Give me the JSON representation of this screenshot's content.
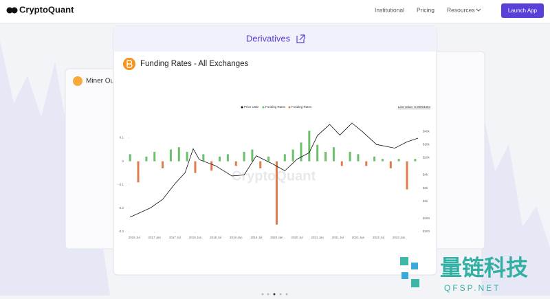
{
  "nav": {
    "logo": "CryptoQuant",
    "links": [
      "Institutional",
      "Pricing",
      "Resources"
    ],
    "button": "Launch App"
  },
  "back_card": {
    "title": "Miner Out"
  },
  "main_card": {
    "header": "Derivatives",
    "title": "Funding Rates - All Exchanges"
  },
  "chart_data": {
    "type": "line",
    "watermark": "CryptoQuant",
    "last_value": "Last Value: 0.00004394",
    "xlim": [
      2016.38,
      2023.47
    ],
    "xticks": [
      {
        "value": 2016.5,
        "label": "2016 Jul"
      },
      {
        "value": 2017.0,
        "label": "2017 Jan"
      },
      {
        "value": 2017.5,
        "label": "2017 Jul"
      },
      {
        "value": 2018.0,
        "label": "2018 Jan"
      },
      {
        "value": 2018.5,
        "label": "2018 Jul"
      },
      {
        "value": 2019.0,
        "label": "2019 Jan"
      },
      {
        "value": 2019.5,
        "label": "2019 Jul"
      },
      {
        "value": 2020.0,
        "label": "2020 Jan"
      },
      {
        "value": 2020.5,
        "label": "2020 Jul"
      },
      {
        "value": 2021.0,
        "label": "2021 Jan"
      },
      {
        "value": 2021.5,
        "label": "2021 Jul"
      },
      {
        "value": 2022.0,
        "label": "2022 Jan"
      },
      {
        "value": 2022.5,
        "label": "2022 Jul"
      },
      {
        "value": 2023.0,
        "label": "2023 Jan"
      }
    ],
    "ylim": [
      -0.3,
      0.16
    ],
    "yticks": [
      0.1,
      0,
      -0.1,
      -0.2,
      -0.3
    ],
    "y2lim": [
      200,
      60000
    ],
    "y2_log": true,
    "y2ticks": [
      {
        "value": 40000,
        "label": "$40k"
      },
      {
        "value": 20000,
        "label": "$20k"
      },
      {
        "value": 10000,
        "label": "$10k"
      },
      {
        "value": 4000,
        "label": "$4k"
      },
      {
        "value": 2000,
        "label": "$2k"
      },
      {
        "value": 1000,
        "label": "$1k"
      },
      {
        "value": 400,
        "label": "$400"
      },
      {
        "value": 200,
        "label": "$200"
      }
    ],
    "x": [
      2016.4,
      2016.6,
      2016.8,
      2017.0,
      2017.2,
      2017.4,
      2017.6,
      2017.8,
      2018.0,
      2018.2,
      2018.4,
      2018.6,
      2018.8,
      2019.0,
      2019.2,
      2019.4,
      2019.6,
      2019.8,
      2020.0,
      2020.2,
      2020.4,
      2020.6,
      2020.8,
      2021.0,
      2021.2,
      2021.4,
      2021.6,
      2021.8,
      2022.0,
      2022.2,
      2022.4,
      2022.6,
      2022.8,
      2023.0,
      2023.2,
      2023.4
    ],
    "series": [
      {
        "name": "Price USD",
        "color": "#111111",
        "axis": "y2",
        "kind": "line",
        "x": [
          2016.4,
          2016.9,
          2017.2,
          2017.5,
          2017.75,
          2017.95,
          2018.1,
          2018.5,
          2018.9,
          2019.2,
          2019.5,
          2019.9,
          2020.2,
          2020.5,
          2020.8,
          2021.0,
          2021.3,
          2021.55,
          2021.85,
          2022.1,
          2022.45,
          2022.9,
          2023.2,
          2023.47
        ],
        "values": [
          430,
          700,
          1100,
          2500,
          4500,
          16000,
          9000,
          6500,
          3800,
          4000,
          11000,
          7200,
          5000,
          9200,
          13000,
          32000,
          58000,
          33000,
          62000,
          40000,
          20000,
          16500,
          23000,
          28000
        ]
      },
      {
        "name": "Funding Rates",
        "color": "#6cbf6a",
        "kind": "bar",
        "values": [
          0.03,
          null,
          0.02,
          0.04,
          null,
          0.05,
          0.06,
          0.04,
          null,
          0.03,
          null,
          0.02,
          0.03,
          null,
          0.04,
          0.05,
          null,
          0.02,
          null,
          0.03,
          0.05,
          0.08,
          0.13,
          0.07,
          0.04,
          0.06,
          null,
          0.04,
          0.03,
          null,
          0.02,
          0.01,
          null,
          0.01,
          null,
          0.01
        ]
      },
      {
        "name": "Funding Rates",
        "color": "#e07a4f",
        "kind": "bar",
        "values": [
          null,
          -0.09,
          null,
          null,
          -0.03,
          null,
          null,
          null,
          -0.05,
          null,
          -0.04,
          null,
          null,
          -0.02,
          null,
          null,
          -0.03,
          null,
          -0.27,
          null,
          null,
          null,
          null,
          null,
          null,
          null,
          -0.02,
          null,
          null,
          -0.02,
          null,
          null,
          -0.03,
          null,
          -0.12,
          null
        ]
      }
    ]
  },
  "watermark": {
    "title": "量链科技",
    "subtitle": "QFSP.NET"
  }
}
